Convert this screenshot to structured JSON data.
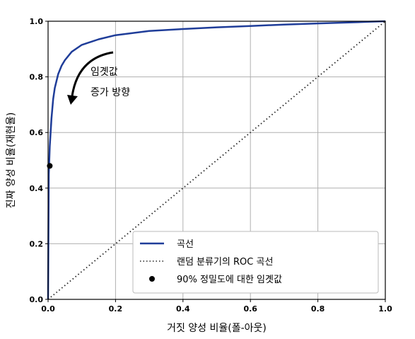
{
  "chart_data": {
    "type": "line",
    "title": "",
    "xlabel": "거짓 양성 비율(폴-아웃)",
    "ylabel": "진짜 양성 비율(재현율)",
    "xlim": [
      0,
      1
    ],
    "ylim": [
      0,
      1
    ],
    "x_ticks": [
      "0.0",
      "0.2",
      "0.4",
      "0.6",
      "0.8",
      "1.0"
    ],
    "y_ticks": [
      "0.0",
      "0.2",
      "0.4",
      "0.6",
      "0.8",
      "1.0"
    ],
    "grid": true,
    "legend_position": "bottom-right",
    "series": [
      {
        "name": "곡선",
        "style": "solid",
        "color": "#1f3d99",
        "x": [
          0.0,
          0.002,
          0.005,
          0.01,
          0.015,
          0.02,
          0.03,
          0.04,
          0.05,
          0.07,
          0.1,
          0.15,
          0.2,
          0.3,
          0.4,
          0.5,
          0.6,
          0.7,
          0.8,
          0.9,
          0.95,
          1.0
        ],
        "y": [
          0.0,
          0.45,
          0.55,
          0.65,
          0.72,
          0.76,
          0.81,
          0.84,
          0.86,
          0.89,
          0.915,
          0.935,
          0.95,
          0.965,
          0.972,
          0.978,
          0.983,
          0.988,
          0.992,
          0.996,
          0.998,
          1.0
        ]
      },
      {
        "name": "랜덤 분류기의 ROC 곡선",
        "style": "dotted",
        "color": "#222222",
        "x": [
          0,
          1
        ],
        "y": [
          0,
          1
        ]
      },
      {
        "name": "90% 정밀도에 대한 임곗값",
        "style": "marker",
        "color": "#000000",
        "x": [
          0.005
        ],
        "y": [
          0.48
        ]
      }
    ],
    "annotations": [
      {
        "lines": [
          "임곗값",
          "증가 방향"
        ]
      }
    ]
  }
}
